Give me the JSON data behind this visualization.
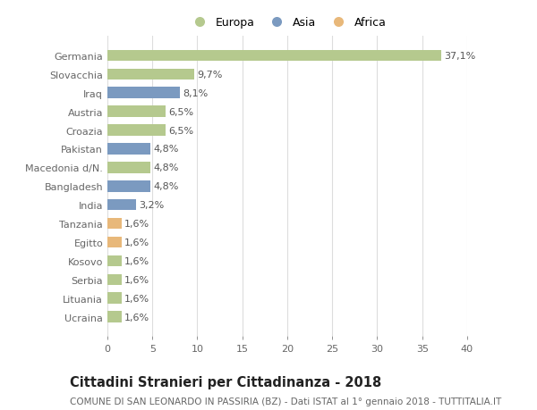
{
  "categories": [
    "Ucraina",
    "Lituania",
    "Serbia",
    "Kosovo",
    "Egitto",
    "Tanzania",
    "India",
    "Bangladesh",
    "Macedonia d/N.",
    "Pakistan",
    "Croazia",
    "Austria",
    "Iraq",
    "Slovacchia",
    "Germania"
  ],
  "values": [
    1.6,
    1.6,
    1.6,
    1.6,
    1.6,
    1.6,
    3.2,
    4.8,
    4.8,
    4.8,
    6.5,
    6.5,
    8.1,
    9.7,
    37.1
  ],
  "labels": [
    "1,6%",
    "1,6%",
    "1,6%",
    "1,6%",
    "1,6%",
    "1,6%",
    "3,2%",
    "4,8%",
    "4,8%",
    "4,8%",
    "6,5%",
    "6,5%",
    "8,1%",
    "9,7%",
    "37,1%"
  ],
  "continents": [
    "Europa",
    "Europa",
    "Europa",
    "Europa",
    "Africa",
    "Africa",
    "Asia",
    "Asia",
    "Europa",
    "Asia",
    "Europa",
    "Europa",
    "Asia",
    "Europa",
    "Europa"
  ],
  "colors": {
    "Europa": "#b5c98e",
    "Asia": "#7b9ac0",
    "Africa": "#e8b87a"
  },
  "bar_height": 0.6,
  "xlim": [
    0,
    40
  ],
  "xticks": [
    0,
    5,
    10,
    15,
    20,
    25,
    30,
    35,
    40
  ],
  "title": "Cittadini Stranieri per Cittadinanza - 2018",
  "subtitle": "COMUNE DI SAN LEONARDO IN PASSIRIA (BZ) - Dati ISTAT al 1° gennaio 2018 - TUTTITALIA.IT",
  "bg_color": "#ffffff",
  "plot_bg_color": "#ffffff",
  "grid_color": "#dddddd",
  "text_color": "#666666",
  "label_color": "#555555",
  "label_fontsize": 8.0,
  "tick_fontsize": 8.0,
  "ytick_fontsize": 8.0,
  "title_fontsize": 10.5,
  "subtitle_fontsize": 7.5,
  "legend_fontsize": 9.0,
  "legend_marker_size": 9
}
